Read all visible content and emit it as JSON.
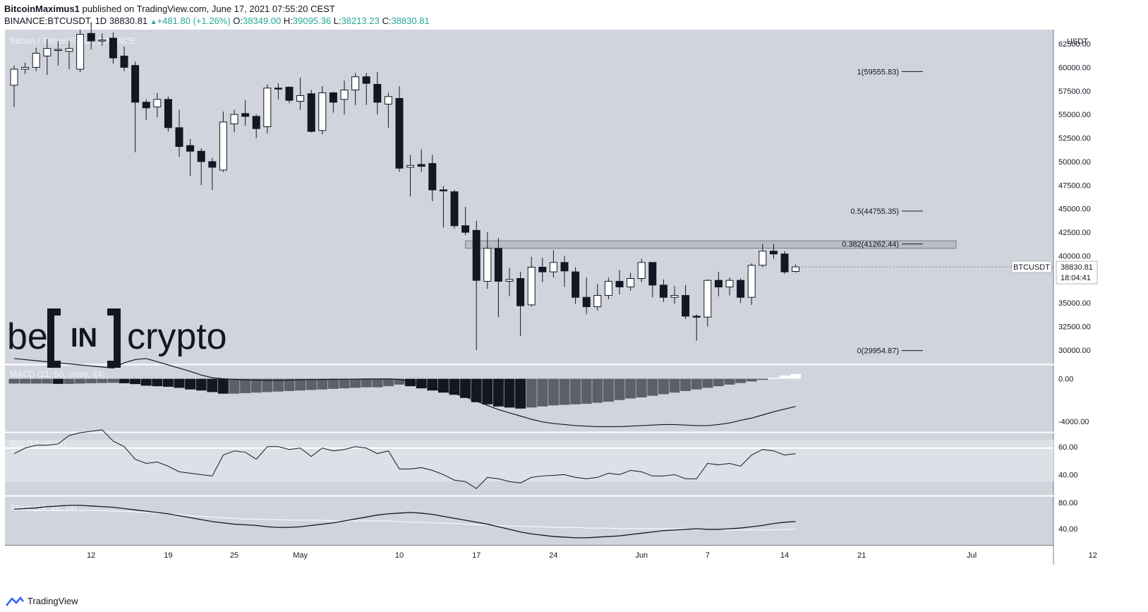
{
  "header": {
    "author": "BitcoinMaximus1",
    "published": "published on TradingView.com, June 17, 2021 07:55:20 CEST",
    "symbol_line": "BINANCE:BTCUSDT, 1D",
    "last": "38830.81",
    "change": "+481.80 (+1.26%)",
    "o_label": "O:",
    "o_value": "38349.00",
    "h_label": "H:",
    "h_value": "39095.36",
    "l_label": "L:",
    "l_value": "38213.23",
    "c_label": "C:",
    "c_value": "38830.81"
  },
  "footer": {
    "brand": "TradingView"
  },
  "watermark": {
    "left": "be",
    "mid": "IN",
    "right": "crypto"
  },
  "colors": {
    "background": "#d1d4dc",
    "bull": "#ffffff",
    "bear": "#131722",
    "macd_hist_light": "#5d606b",
    "rsi_band": "#dde0e6"
  },
  "chart_data": [
    {
      "type": "candlestick",
      "title": "Bitcoin / TetherUS, 1D, BINANCE",
      "ylabel": "USDT",
      "ylim": [
        28500,
        64000
      ],
      "y_ticks": [
        30000,
        32500,
        35000,
        37500,
        40000,
        42500,
        45000,
        47500,
        50000,
        52500,
        55000,
        57500,
        60000,
        62500
      ],
      "y_tick_labels": [
        "30000.00",
        "32500.00",
        "35000.00",
        "37500.00",
        "40000.00",
        "42500.00",
        "45000.00",
        "47500.00",
        "50000.00",
        "52500.00",
        "55000.00",
        "57500.00",
        "60000.00",
        "62500.00"
      ],
      "x_tick_labels": [
        {
          "day": 7,
          "label": "12"
        },
        {
          "day": 14,
          "label": "19"
        },
        {
          "day": 20,
          "label": "25"
        },
        {
          "day": 26,
          "label": "May"
        },
        {
          "day": 35,
          "label": "10"
        },
        {
          "day": 42,
          "label": "17"
        },
        {
          "day": 49,
          "label": "24"
        },
        {
          "day": 57,
          "label": "Jun"
        },
        {
          "day": 63,
          "label": "7"
        },
        {
          "day": 70,
          "label": "14"
        },
        {
          "day": 77,
          "label": "21"
        },
        {
          "day": 87,
          "label": "Jul"
        },
        {
          "day": 98,
          "label": "12"
        }
      ],
      "candles": [
        [
          0,
          58100,
          59800,
          55800,
          60200
        ],
        [
          1,
          59800,
          60000,
          59300,
          60500
        ],
        [
          2,
          60000,
          61500,
          59600,
          62100
        ],
        [
          3,
          61200,
          62000,
          59200,
          63000
        ],
        [
          4,
          61800,
          61900,
          60200,
          62800
        ],
        [
          5,
          61700,
          62000,
          59800,
          62800
        ],
        [
          6,
          59800,
          63500,
          59500,
          64000
        ],
        [
          7,
          63600,
          62800,
          61900,
          64800
        ],
        [
          8,
          62800,
          62900,
          62300,
          63600
        ],
        [
          9,
          63100,
          61000,
          60400,
          63700
        ],
        [
          10,
          61200,
          60000,
          59600,
          62200
        ],
        [
          11,
          60200,
          56300,
          51000,
          60600
        ],
        [
          12,
          56300,
          55700,
          54400,
          56600
        ],
        [
          13,
          55800,
          56600,
          54700,
          57300
        ],
        [
          14,
          56600,
          53600,
          53200,
          56900
        ],
        [
          15,
          53600,
          51600,
          50500,
          55500
        ],
        [
          16,
          51700,
          51100,
          48500,
          52400
        ],
        [
          17,
          51100,
          50000,
          47500,
          51400
        ],
        [
          18,
          50000,
          49400,
          47000,
          50400
        ],
        [
          19,
          49100,
          54200,
          48900,
          55300
        ],
        [
          20,
          54000,
          55000,
          53100,
          55500
        ],
        [
          21,
          55100,
          54800,
          53800,
          56500
        ],
        [
          22,
          54800,
          53500,
          52500,
          55000
        ],
        [
          23,
          53700,
          57800,
          53000,
          58200
        ],
        [
          24,
          57800,
          57700,
          56600,
          58300
        ],
        [
          25,
          57900,
          56500,
          56200,
          58000
        ],
        [
          26,
          56400,
          57000,
          55500,
          58900
        ],
        [
          27,
          57200,
          53200,
          53100,
          57600
        ],
        [
          28,
          53300,
          57300,
          52900,
          58000
        ],
        [
          29,
          57300,
          56300,
          55200,
          57400
        ],
        [
          30,
          56600,
          57600,
          55000,
          58600
        ],
        [
          31,
          57600,
          59000,
          56000,
          59400
        ],
        [
          32,
          59000,
          58300,
          56000,
          59400
        ],
        [
          33,
          58200,
          56300,
          55000,
          59500
        ],
        [
          34,
          56100,
          56900,
          53600,
          57300
        ],
        [
          35,
          56700,
          49300,
          48900,
          58000
        ],
        [
          36,
          49400,
          49600,
          46300,
          50700
        ],
        [
          37,
          49700,
          49500,
          48900,
          51300
        ],
        [
          38,
          49800,
          47000,
          45800,
          50700
        ],
        [
          39,
          47000,
          46900,
          43000,
          47400
        ],
        [
          40,
          46800,
          43200,
          42900,
          47000
        ],
        [
          41,
          43200,
          42500,
          42200,
          45200
        ],
        [
          42,
          42700,
          37400,
          30000,
          43700
        ],
        [
          43,
          37300,
          40800,
          36500,
          42500
        ],
        [
          44,
          40800,
          37300,
          33500,
          41900
        ],
        [
          45,
          37300,
          37500,
          35700,
          38700
        ],
        [
          46,
          37600,
          34700,
          31500,
          38300
        ],
        [
          47,
          34800,
          38800,
          34600,
          39900
        ],
        [
          48,
          38800,
          38300,
          37200,
          39800
        ],
        [
          49,
          38300,
          39300,
          37700,
          40600
        ],
        [
          50,
          39300,
          38400,
          36700,
          40000
        ],
        [
          51,
          38300,
          35600,
          34900,
          38800
        ],
        [
          52,
          35600,
          34600,
          33800,
          37700
        ],
        [
          53,
          34600,
          35800,
          34200,
          37000
        ],
        [
          54,
          35800,
          37300,
          35400,
          37700
        ],
        [
          55,
          37300,
          36700,
          35900,
          38500
        ],
        [
          56,
          36700,
          37600,
          36300,
          38200
        ],
        [
          57,
          37600,
          39300,
          37200,
          39700
        ],
        [
          58,
          39300,
          36900,
          35600,
          39300
        ],
        [
          59,
          36900,
          35600,
          35100,
          37500
        ],
        [
          60,
          35600,
          35800,
          34900,
          36800
        ],
        [
          61,
          35800,
          33600,
          33300,
          36900
        ],
        [
          62,
          33600,
          33500,
          31000,
          33800
        ],
        [
          63,
          33500,
          37400,
          32500,
          37500
        ],
        [
          64,
          37400,
          36700,
          35700,
          38300
        ],
        [
          65,
          36700,
          37400,
          35800,
          37700
        ],
        [
          66,
          37400,
          35600,
          35000,
          37600
        ],
        [
          67,
          35600,
          39000,
          34800,
          39200
        ],
        [
          68,
          39000,
          40500,
          38800,
          41300
        ],
        [
          69,
          40500,
          40200,
          39700,
          41300
        ],
        [
          70,
          40200,
          38300,
          38100,
          40500
        ],
        [
          71,
          38349,
          38831,
          38213,
          39095
        ]
      ],
      "fib_levels": [
        {
          "ratio": "1",
          "value": 59555.83,
          "label": "1(59555.83)"
        },
        {
          "ratio": "0.5",
          "value": 44755.35,
          "label": "0.5(44755.35)"
        },
        {
          "ratio": "0.382",
          "value": 41262.44,
          "label": "0.382(41262.44)"
        },
        {
          "ratio": "0",
          "value": 29954.87,
          "label": "0(29954.87)"
        }
      ],
      "resistance_zone": [
        40800,
        41600
      ],
      "last_price": {
        "symbol": "BTCUSDT",
        "price": "38830.81",
        "countdown": "18:04:41"
      }
    },
    {
      "type": "bar",
      "title": "MACD (21, 50, close, 24)",
      "y_ticks": [
        0,
        -4000
      ],
      "y_tick_labels": [
        "0.00",
        "-4000.00"
      ],
      "ylim": [
        -5000,
        1300
      ],
      "histogram": [
        -450,
        -450,
        -450,
        -450,
        -480,
        -480,
        -450,
        -420,
        -400,
        -380,
        -420,
        -500,
        -650,
        -700,
        -750,
        -850,
        -1000,
        -1100,
        -1250,
        -1400,
        -1400,
        -1350,
        -1300,
        -1250,
        -1200,
        -1150,
        -1100,
        -1050,
        -1000,
        -950,
        -900,
        -850,
        -800,
        -800,
        -700,
        -550,
        -700,
        -900,
        -1100,
        -1300,
        -1500,
        -1800,
        -2200,
        -2400,
        -2600,
        -2700,
        -2800,
        -2700,
        -2600,
        -2500,
        -2450,
        -2400,
        -2350,
        -2250,
        -2150,
        -2000,
        -1850,
        -1750,
        -1600,
        -1450,
        -1300,
        -1150,
        -1000,
        -850,
        -700,
        -550,
        -400,
        -250,
        -100,
        100,
        300,
        450
      ],
      "line": [
        1900,
        1800,
        1700,
        1600,
        1500,
        1400,
        1300,
        1200,
        1100,
        1000,
        1500,
        1800,
        1900,
        1600,
        1300,
        1000,
        700,
        350,
        100,
        0,
        -50,
        -100,
        -120,
        -150,
        -150,
        -130,
        -100,
        -80,
        -60,
        -50,
        -40,
        -30,
        -20,
        -20,
        -10,
        -60,
        -250,
        -500,
        -800,
        -1100,
        -1400,
        -1700,
        -2100,
        -2500,
        -2900,
        -3200,
        -3500,
        -3800,
        -4050,
        -4200,
        -4300,
        -4400,
        -4450,
        -4500,
        -4500,
        -4500,
        -4450,
        -4400,
        -4350,
        -4300,
        -4300,
        -4350,
        -4400,
        -4400,
        -4300,
        -4150,
        -3900,
        -3700,
        -3400,
        -3100,
        -2850,
        -2600
      ]
    },
    {
      "type": "line",
      "title": "RSI (14, close)",
      "y_ticks": [
        60,
        40
      ],
      "y_tick_labels": [
        "60.00",
        "40.00"
      ],
      "ylim": [
        25,
        70
      ],
      "band": [
        35,
        65
      ],
      "values": [
        55,
        59,
        61,
        61,
        62,
        68,
        70,
        71,
        72,
        64,
        60,
        51,
        48,
        49,
        46,
        42,
        41,
        40,
        39,
        54,
        57,
        56,
        51,
        60,
        60,
        58,
        59,
        53,
        59,
        57,
        58,
        60,
        59,
        55,
        57,
        44,
        44,
        45,
        43,
        40,
        36,
        35,
        30,
        38,
        37,
        35,
        34,
        38,
        39,
        39.5,
        40,
        38,
        37,
        38,
        41,
        40,
        43,
        42,
        39,
        39,
        40,
        37,
        37,
        48,
        47,
        48,
        46,
        54,
        58,
        57,
        54,
        55
      ],
      "reference": 59
    },
    {
      "type": "line",
      "title": "Stoch (14, 28, 14)",
      "y_ticks": [
        80,
        40
      ],
      "y_tick_labels": [
        "80.00",
        "40.00"
      ],
      "ylim": [
        15,
        90
      ],
      "series": [
        {
          "values": [
            70,
            71,
            72,
            74,
            75,
            76,
            76,
            75,
            74,
            73,
            71,
            69,
            67,
            65,
            63,
            60,
            57,
            54,
            51,
            49,
            47,
            46,
            45,
            43,
            42,
            42,
            43,
            45,
            47,
            49,
            52,
            55,
            58,
            61,
            63,
            64,
            65,
            64,
            62,
            59,
            56,
            53,
            50,
            47,
            43,
            39,
            35,
            32,
            30,
            28,
            27,
            26,
            26,
            27,
            28,
            29,
            31,
            33,
            35,
            37,
            38,
            39,
            40,
            39,
            39,
            40,
            41,
            43,
            45,
            48,
            50,
            51
          ]
        },
        {
          "values": [
            69,
            69,
            68,
            68,
            68,
            68,
            68,
            68,
            68,
            67,
            67,
            66,
            65,
            64,
            63,
            62,
            60,
            59,
            58,
            57,
            56,
            55,
            55,
            54,
            54,
            53,
            53,
            53,
            53,
            52,
            52,
            52,
            52,
            52,
            52,
            51,
            50,
            50,
            49,
            49,
            48,
            47,
            46,
            46,
            45,
            44,
            44,
            43,
            43,
            42,
            42,
            42,
            41,
            41,
            41,
            40,
            40,
            40,
            40,
            40,
            40,
            40,
            39,
            39,
            39,
            38,
            38,
            38,
            38,
            38,
            39,
            39
          ]
        }
      ]
    }
  ]
}
